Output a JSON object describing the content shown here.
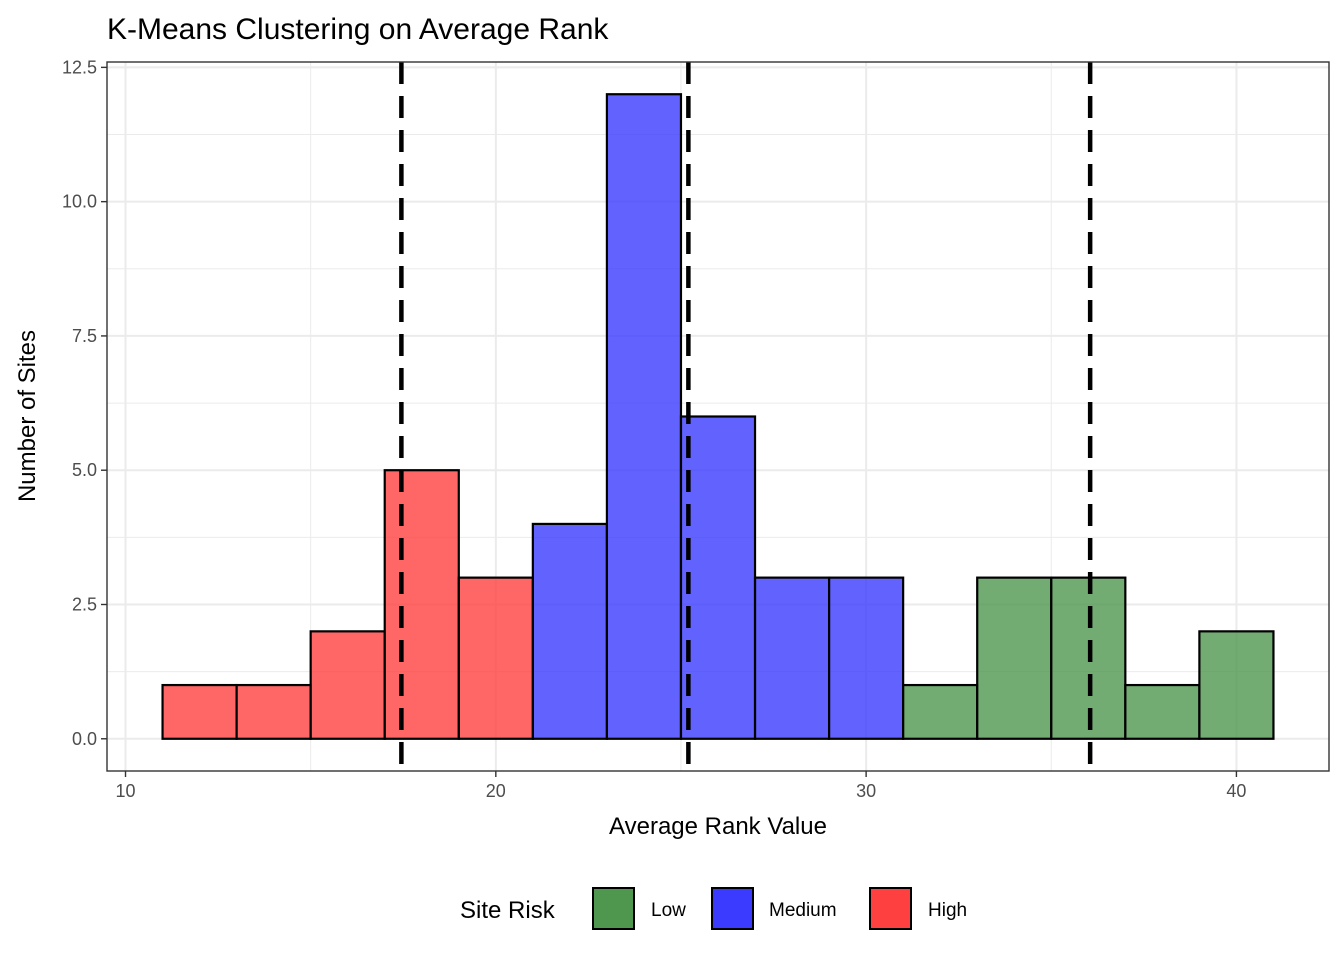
{
  "chart_data": {
    "type": "bar",
    "title": "K-Means Clustering on Average Rank",
    "xlabel": "Average Rank Value",
    "ylabel": "Number of Sites",
    "xlim": [
      9.5,
      42.5
    ],
    "ylim": [
      -0.6,
      12.6
    ],
    "x_ticks": [
      10,
      20,
      30,
      40
    ],
    "x_tick_labels": [
      "10",
      "20",
      "30",
      "40"
    ],
    "y_ticks": [
      0,
      2.5,
      5,
      7.5,
      10,
      12.5
    ],
    "y_tick_labels": [
      "0.0",
      "2.5",
      "5.0",
      "7.5",
      "10.0",
      "12.5"
    ],
    "grid": true,
    "bin_width": 2,
    "bins": [
      {
        "start": 11,
        "end": 13,
        "count": 1,
        "risk": "High"
      },
      {
        "start": 13,
        "end": 15,
        "count": 1,
        "risk": "High"
      },
      {
        "start": 15,
        "end": 17,
        "count": 2,
        "risk": "High"
      },
      {
        "start": 17,
        "end": 19,
        "count": 5,
        "risk": "High"
      },
      {
        "start": 19,
        "end": 21,
        "count": 3,
        "risk": "High"
      },
      {
        "start": 21,
        "end": 23,
        "count": 4,
        "risk": "Medium"
      },
      {
        "start": 23,
        "end": 25,
        "count": 12,
        "risk": "Medium"
      },
      {
        "start": 25,
        "end": 27,
        "count": 6,
        "risk": "Medium"
      },
      {
        "start": 27,
        "end": 29,
        "count": 3,
        "risk": "Medium"
      },
      {
        "start": 29,
        "end": 31,
        "count": 3,
        "risk": "Medium"
      },
      {
        "start": 31,
        "end": 33,
        "count": 1,
        "risk": "Low"
      },
      {
        "start": 33,
        "end": 35,
        "count": 3,
        "risk": "Low"
      },
      {
        "start": 35,
        "end": 37,
        "count": 3,
        "risk": "Low"
      },
      {
        "start": 37,
        "end": 39,
        "count": 1,
        "risk": "Low"
      },
      {
        "start": 39,
        "end": 41,
        "count": 2,
        "risk": "Low"
      }
    ],
    "center_lines": [
      17.45,
      25.2,
      36.05
    ],
    "legend": {
      "title": "Site Risk",
      "position": "bottom",
      "items": [
        {
          "label": "Low",
          "color": "#4f974f"
        },
        {
          "label": "Medium",
          "color": "#3b3bff"
        },
        {
          "label": "High",
          "color": "#ff4040"
        }
      ]
    }
  }
}
